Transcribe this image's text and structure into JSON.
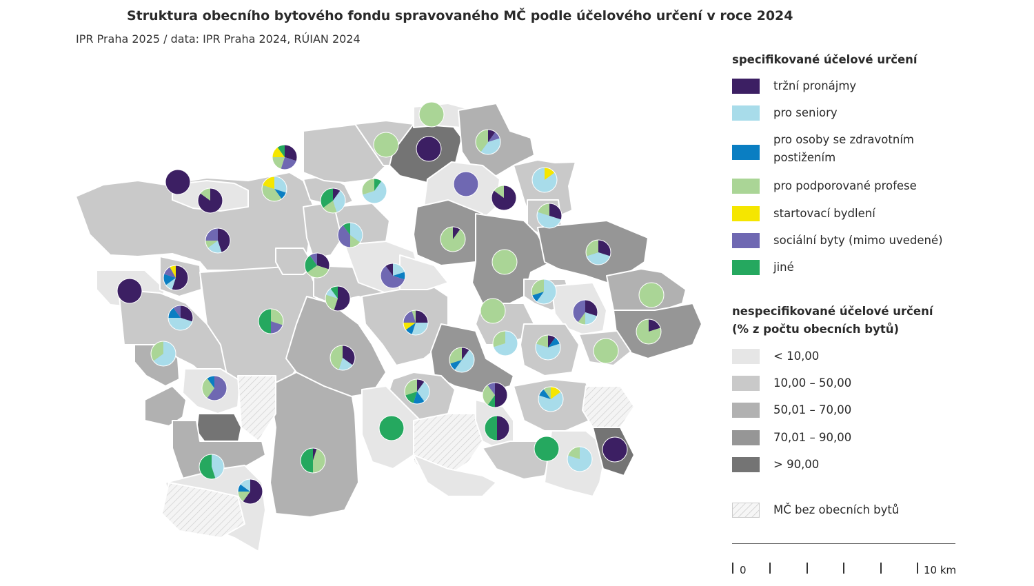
{
  "title": "Struktura obecního bytového fondu spravovaného MČ podle účelového určení v roce 2024",
  "source": "IPR Praha 2025 / data: IPR Praha 2024, RÚIAN 2024",
  "colors": {
    "trzni": "#3c1f63",
    "seniory": "#a8dcea",
    "postizeni": "#0a7ec2",
    "profese": "#aad596",
    "startovaci": "#f5e600",
    "socialni": "#6f68b2",
    "jine": "#25a85f",
    "class1": "#e6e6e6",
    "class2": "#c9c9c9",
    "class3": "#b1b1b1",
    "class4": "#969696",
    "class5": "#747474",
    "none": "#f3f3f3"
  },
  "legend": {
    "specified_heading": "specifikované účelové určení",
    "specified_items": [
      {
        "key": "trzni",
        "label": "tržní pronájmy"
      },
      {
        "key": "seniory",
        "label": "pro seniory"
      },
      {
        "key": "postizeni",
        "label": "pro osoby se zdravotním postižením"
      },
      {
        "key": "profese",
        "label": "pro podporované profese"
      },
      {
        "key": "startovaci",
        "label": "startovací bydlení"
      },
      {
        "key": "socialni",
        "label": "sociální byty (mimo uvedené)"
      },
      {
        "key": "jine",
        "label": "jiné"
      }
    ],
    "unspecified_heading_1": "nespecifikované účelové určení",
    "unspecified_heading_2": "(% z počtu obecních bytů)",
    "unspecified_items": [
      {
        "key": "class1",
        "label": "< 10,00"
      },
      {
        "key": "class2",
        "label": "10,00 – 50,00"
      },
      {
        "key": "class3",
        "label": "50,01 – 70,00"
      },
      {
        "key": "class4",
        "label": "70,01 – 90,00"
      },
      {
        "key": "class5",
        "label": "> 90,00"
      }
    ],
    "no_flats_label": "MČ bez obecních bytů"
  },
  "scale": {
    "start_label": "0",
    "end_label": "10 km"
  }
}
